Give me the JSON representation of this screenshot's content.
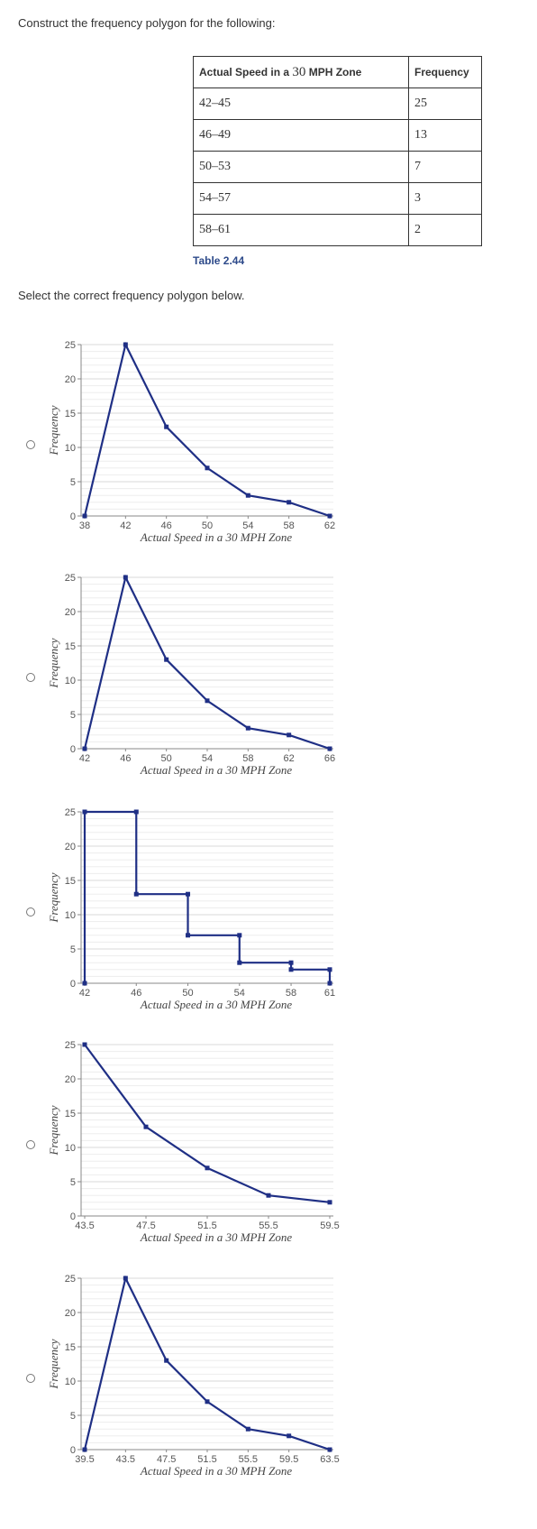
{
  "question": {
    "prompt": "Construct the frequency polygon for the following:",
    "select_prompt": "Select the correct frequency polygon below.",
    "table": {
      "header_prefix": "Actual Speed in a ",
      "header_number": "30",
      "header_suffix": " MPH Zone",
      "freq_header": "Frequency",
      "rows": [
        {
          "interval": "42–45",
          "freq": "25"
        },
        {
          "interval": "46–49",
          "freq": "13"
        },
        {
          "interval": "50–53",
          "freq": "7"
        },
        {
          "interval": "54–57",
          "freq": "3"
        },
        {
          "interval": "58–61",
          "freq": "2"
        }
      ],
      "caption": "Table 2.44"
    }
  },
  "chart_data": [
    {
      "type": "line",
      "xlabel": "Actual Speed in a 30 MPH Zone",
      "ylabel": "Frequency",
      "xlim": [
        38,
        62
      ],
      "ylim": [
        0,
        25
      ],
      "xticks": [
        38,
        42,
        46,
        50,
        54,
        58,
        62
      ],
      "xtick_labels": [
        "38",
        "42",
        "46",
        "50",
        "54",
        "58",
        "62"
      ],
      "yticks": [
        0,
        5,
        10,
        15,
        20,
        25
      ],
      "x": [
        38,
        42,
        46,
        50,
        54,
        58,
        62
      ],
      "y": [
        0,
        25,
        13,
        7,
        3,
        2,
        0
      ],
      "color": "#1f2f85"
    },
    {
      "type": "line",
      "xlabel": "Actual Speed in a 30 MPH Zone",
      "ylabel": "Frequency",
      "xlim": [
        42,
        66
      ],
      "ylim": [
        0,
        25
      ],
      "xticks": [
        42,
        46,
        50,
        54,
        58,
        62,
        66
      ],
      "xtick_labels": [
        "42",
        "46",
        "50",
        "54",
        "58",
        "62",
        "66"
      ],
      "yticks": [
        0,
        5,
        10,
        15,
        20,
        25
      ],
      "x": [
        42,
        46,
        50,
        54,
        58,
        62,
        66
      ],
      "y": [
        0,
        25,
        13,
        7,
        3,
        2,
        0
      ],
      "color": "#1f2f85"
    },
    {
      "type": "line",
      "xlabel": "Actual Speed in a 30 MPH Zone",
      "ylabel": "Frequency",
      "xlim": [
        42,
        61
      ],
      "ylim": [
        0,
        25
      ],
      "xticks": [
        42,
        46,
        50,
        54,
        58,
        61
      ],
      "xtick_labels": [
        "42",
        "46",
        "50",
        "54",
        "58",
        "61"
      ],
      "yticks": [
        0,
        5,
        10,
        15,
        20,
        25
      ],
      "x": [
        42,
        42,
        46,
        46,
        50,
        50,
        54,
        54,
        58,
        58,
        61,
        61
      ],
      "y": [
        0,
        25,
        25,
        13,
        13,
        7,
        7,
        3,
        3,
        2,
        2,
        0
      ],
      "color": "#1f2f85"
    },
    {
      "type": "line",
      "xlabel": "Actual Speed in a 30 MPH Zone",
      "ylabel": "Frequency",
      "xlim": [
        43.5,
        59.5
      ],
      "ylim": [
        0,
        25
      ],
      "xticks": [
        43.5,
        47.5,
        51.5,
        55.5,
        59.5
      ],
      "xtick_labels": [
        "43.5",
        "47.5",
        "51.5",
        "55.5",
        "59.5"
      ],
      "yticks": [
        0,
        5,
        10,
        15,
        20,
        25
      ],
      "x": [
        43.5,
        47.5,
        51.5,
        55.5,
        59.5
      ],
      "y": [
        25,
        13,
        7,
        3,
        2
      ],
      "color": "#1f2f85"
    },
    {
      "type": "line",
      "xlabel": "Actual Speed in a 30 MPH Zone",
      "ylabel": "Frequency",
      "xlim": [
        39.5,
        63.5
      ],
      "ylim": [
        0,
        25
      ],
      "xticks": [
        39.5,
        43.5,
        47.5,
        51.5,
        55.5,
        59.5,
        63.5
      ],
      "xtick_labels": [
        "39.5",
        "43.5",
        "47.5",
        "51.5",
        "55.5",
        "59.5",
        "63.5"
      ],
      "yticks": [
        0,
        5,
        10,
        15,
        20,
        25
      ],
      "x": [
        39.5,
        43.5,
        47.5,
        51.5,
        55.5,
        59.5,
        63.5
      ],
      "y": [
        0,
        25,
        13,
        7,
        3,
        2,
        0
      ],
      "color": "#1f2f85"
    }
  ]
}
